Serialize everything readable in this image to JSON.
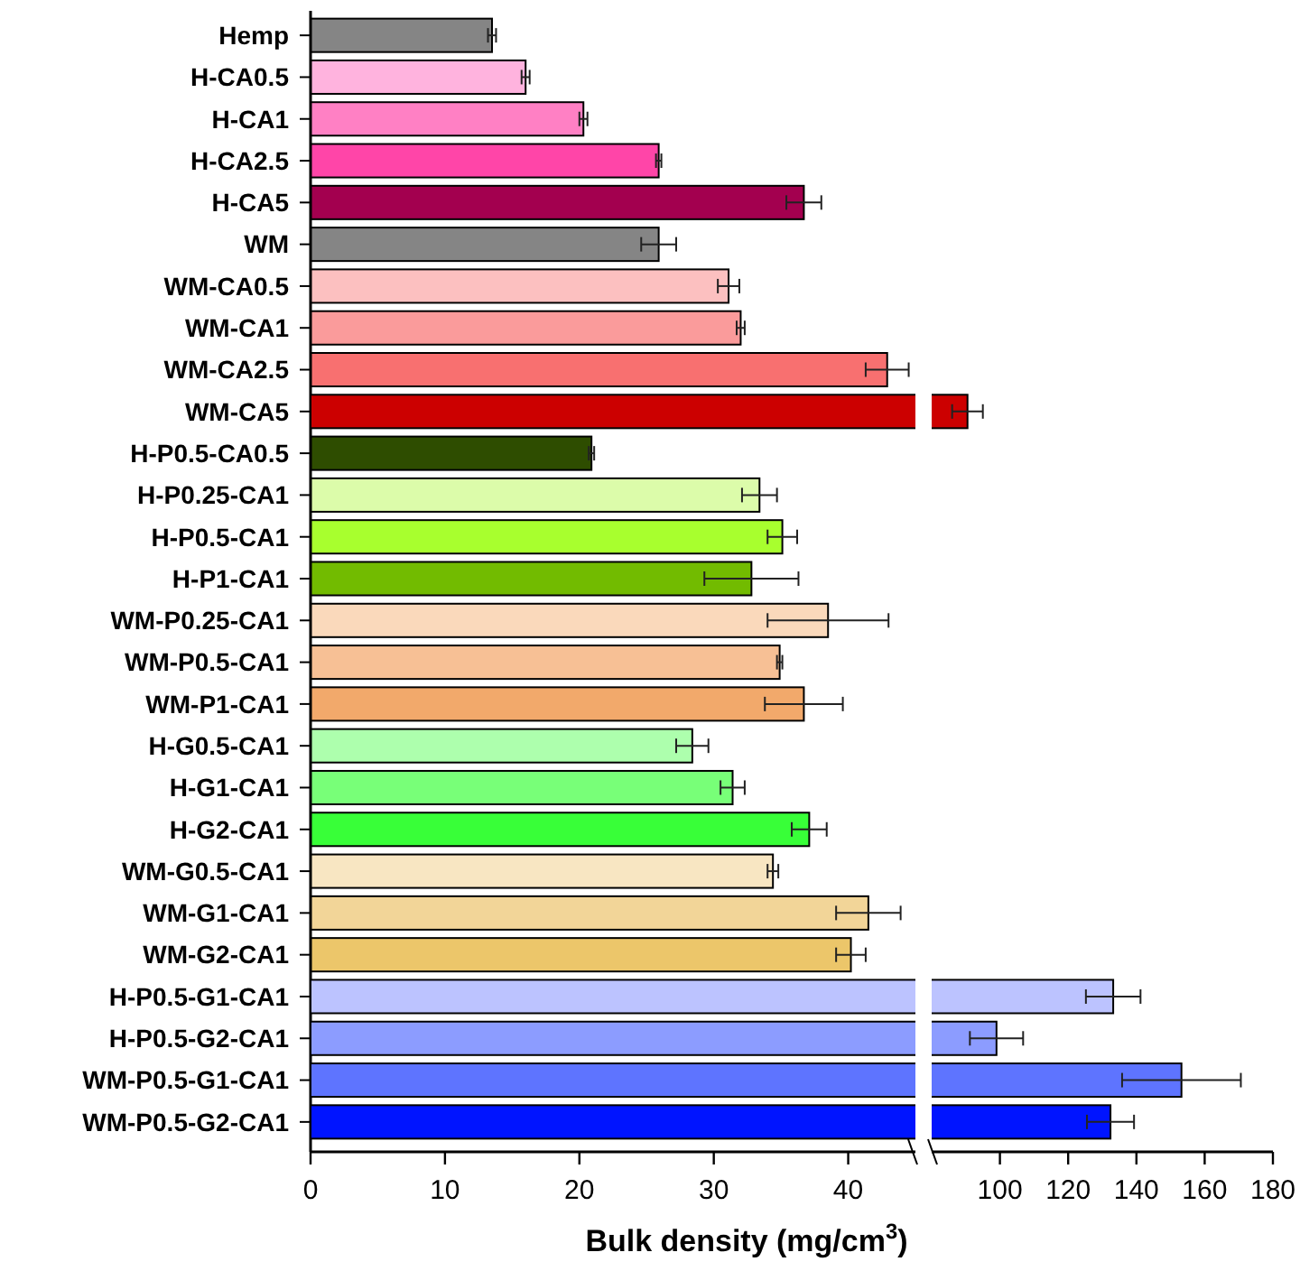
{
  "chart_data": [
    {
      "type": "bar",
      "orientation": "horizontal",
      "xlabel": "Bulk density (mg/cm$^{3}$)",
      "categories": [
        "Hemp",
        "H-CA0.5",
        "H-CA1",
        "H-CA2.5",
        "H-CA5",
        "WM",
        "WM-CA0.5",
        "WM-CA1",
        "WM-CA2.5",
        "WM-CA5",
        "H-P0.5-CA0.5",
        "H-P0.25-CA1",
        "H-P0.5-CA1",
        "H-P1-CA1",
        "WM-P0.25-CA1",
        "WM-P0.5-CA1",
        "WM-P1-CA1",
        "H-G0.5-CA1",
        "H-G1-CA1",
        "H-G2-CA1",
        "WM-G0.5-CA1",
        "WM-G1-CA1",
        "WM-G2-CA1",
        "H-P0.5-G1-CA1",
        "H-P0.5-G2-CA1",
        "WM-P0.5-G1-CA1",
        "WM-P0.5-G2-CA1"
      ],
      "values": [
        13.5,
        16.0,
        20.3,
        25.9,
        36.7,
        25.9,
        31.1,
        32.0,
        42.9,
        null,
        20.9,
        33.4,
        35.1,
        32.8,
        38.5,
        34.9,
        36.7,
        28.4,
        31.4,
        37.1,
        34.4,
        41.5,
        40.2,
        null,
        null,
        null,
        null
      ],
      "errors": [
        0.3,
        0.3,
        0.3,
        0.2,
        1.3,
        1.3,
        0.8,
        0.3,
        1.6,
        null,
        0.2,
        1.3,
        1.1,
        3.5,
        4.5,
        0.2,
        2.9,
        1.2,
        0.9,
        1.3,
        0.4,
        2.4,
        1.1,
        null,
        null,
        null,
        null
      ],
      "colors": [
        "#858585",
        "#ffb3de",
        "#ff80c4",
        "#ff45a8",
        "#a3004f",
        "#858585",
        "#fcc0c0",
        "#fa9b9b",
        "#f87070",
        null,
        "#2e4d00",
        "#dcfcaa",
        "#a8ff2e",
        "#72bb00",
        "#fad9bb",
        "#f7c095",
        "#f2a96b",
        "#adffad",
        "#78ff78",
        "#38ff38",
        "#f8e6c2",
        "#f2d598",
        "#ecc66a",
        null,
        null,
        null,
        null
      ],
      "xlim": [
        0,
        45
      ],
      "xticks": [
        0,
        10,
        20,
        30,
        40
      ]
    },
    {
      "type": "bar",
      "orientation": "horizontal",
      "tick_labels": "x",
      "categories": [
        null,
        null,
        null,
        null,
        null,
        null,
        null,
        null,
        null,
        null,
        null,
        null,
        null,
        null,
        null,
        null,
        null,
        null,
        null,
        null,
        null,
        null,
        null,
        null,
        null,
        null,
        null
      ],
      "values": [
        null,
        null,
        null,
        null,
        null,
        null,
        null,
        null,
        null,
        90.5,
        null,
        null,
        null,
        null,
        null,
        null,
        null,
        null,
        null,
        null,
        null,
        null,
        null,
        133.2,
        99.0,
        153.2,
        132.4
      ],
      "errors": [
        null,
        null,
        null,
        null,
        null,
        null,
        null,
        null,
        null,
        4.5,
        null,
        null,
        null,
        null,
        null,
        null,
        null,
        null,
        null,
        null,
        null,
        null,
        null,
        8,
        7.8,
        17.4,
        6.9
      ],
      "colors": [
        null,
        null,
        null,
        null,
        null,
        null,
        null,
        null,
        null,
        "#cc0000",
        null,
        null,
        null,
        null,
        null,
        null,
        null,
        null,
        null,
        null,
        null,
        null,
        null,
        "#bcc3ff",
        "#8c9cff",
        "#5e74ff",
        "#0014ff"
      ],
      "xlim": [
        80,
        180
      ],
      "xticks": [
        100,
        120,
        140,
        160,
        180
      ]
    }
  ]
}
